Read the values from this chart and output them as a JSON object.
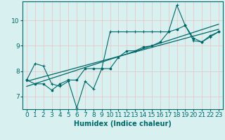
{
  "xlabel": "Humidex (Indice chaleur)",
  "background_color": "#d8f0f0",
  "grid_color": "#e8c8c8",
  "line_color": "#006868",
  "xlim": [
    -0.5,
    23.5
  ],
  "ylim": [
    6.5,
    10.75
  ],
  "yticks": [
    7,
    8,
    9,
    10
  ],
  "xticks": [
    0,
    1,
    2,
    3,
    4,
    5,
    6,
    7,
    8,
    9,
    10,
    11,
    12,
    13,
    14,
    15,
    16,
    17,
    18,
    19,
    20,
    21,
    22,
    23
  ],
  "series1_x": [
    0,
    1,
    2,
    3,
    4,
    5,
    6,
    7,
    8,
    9,
    10,
    11,
    12,
    13,
    14,
    15,
    16,
    17,
    18,
    19,
    20,
    21,
    22,
    23
  ],
  "series1_y": [
    7.65,
    8.3,
    8.2,
    7.5,
    7.4,
    7.6,
    6.55,
    7.6,
    7.3,
    8.1,
    9.55,
    9.55,
    9.55,
    9.55,
    9.55,
    9.55,
    9.55,
    9.55,
    10.6,
    9.8,
    9.2,
    9.15,
    9.35,
    9.55
  ],
  "series2_x": [
    0,
    1,
    2,
    3,
    4,
    5,
    6,
    7,
    8,
    9,
    10,
    11,
    12,
    13,
    14,
    15,
    16,
    17,
    18,
    19,
    20,
    21,
    22,
    23
  ],
  "series2_y": [
    7.65,
    7.5,
    7.5,
    7.25,
    7.5,
    7.65,
    7.65,
    8.1,
    8.1,
    8.1,
    8.1,
    8.55,
    8.8,
    8.8,
    8.95,
    9.0,
    9.15,
    9.55,
    9.65,
    9.8,
    9.3,
    9.15,
    9.4,
    9.55
  ],
  "trend1_x": [
    0,
    23
  ],
  "trend1_y": [
    7.4,
    9.85
  ],
  "trend2_x": [
    0,
    23
  ],
  "trend2_y": [
    7.6,
    9.65
  ],
  "xlabel_fontsize": 7,
  "tick_fontsize": 6.5
}
